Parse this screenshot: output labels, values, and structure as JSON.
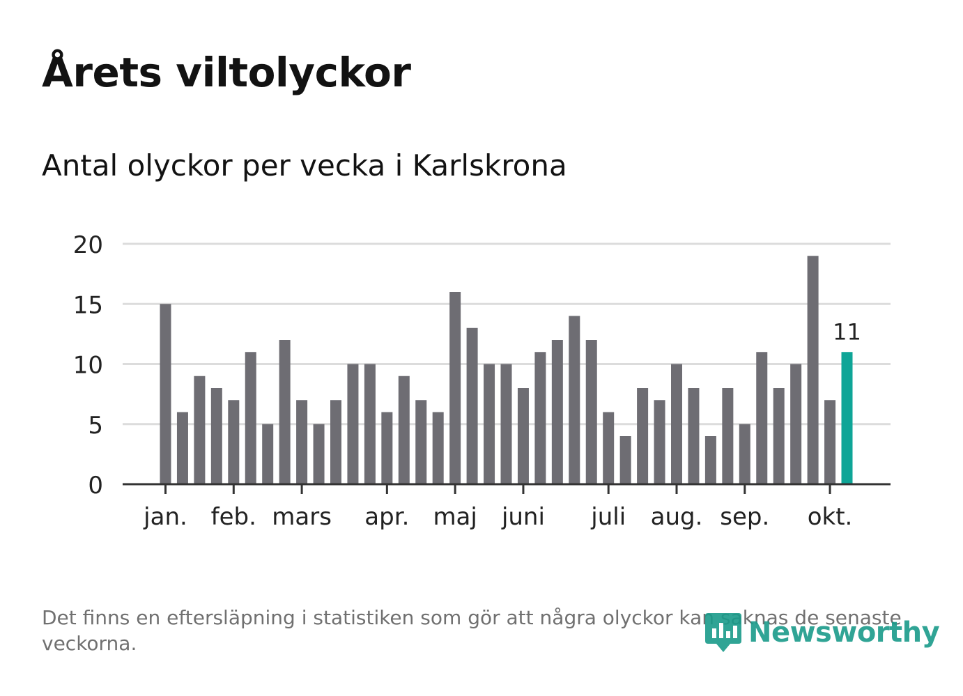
{
  "header": {
    "title": "Årets viltolyckor",
    "subtitle": "Antal olyckor per vecka i Karlskrona"
  },
  "footer": {
    "note": "Det finns en eftersläpning i statistiken som gör att några olyckor kan saknas de senaste veckorna.",
    "brand": "Newsworthy",
    "brand_icon": "bar-chart-pin-icon"
  },
  "colors": {
    "bar": "#6e6d73",
    "highlight": "#0ea597",
    "grid": "#dcdcdc",
    "axis": "#333333",
    "text": "#222222"
  },
  "chart_data": {
    "type": "bar",
    "title": "Antal olyckor per vecka i Karlskrona",
    "xlabel": "",
    "ylabel": "",
    "ylim": [
      0,
      20
    ],
    "yticks": [
      0,
      5,
      10,
      15,
      20
    ],
    "x": [
      1,
      2,
      3,
      4,
      5,
      6,
      7,
      8,
      9,
      10,
      11,
      12,
      13,
      14,
      15,
      16,
      17,
      18,
      19,
      20,
      21,
      22,
      23,
      24,
      25,
      26,
      27,
      28,
      29,
      30,
      31,
      32,
      33,
      34,
      35,
      36,
      37,
      38,
      39,
      40,
      41
    ],
    "values": [
      15,
      6,
      9,
      8,
      7,
      11,
      5,
      12,
      7,
      5,
      7,
      10,
      10,
      6,
      9,
      7,
      6,
      16,
      13,
      10,
      10,
      8,
      11,
      12,
      14,
      12,
      6,
      4,
      8,
      7,
      10,
      8,
      4,
      8,
      5,
      11,
      8,
      10,
      19,
      7,
      11
    ],
    "month_ticks": [
      {
        "label": "jan.",
        "week": 1
      },
      {
        "label": "feb.",
        "week": 5
      },
      {
        "label": "mars",
        "week": 9
      },
      {
        "label": "apr.",
        "week": 14
      },
      {
        "label": "maj",
        "week": 18
      },
      {
        "label": "juni",
        "week": 22
      },
      {
        "label": "juli",
        "week": 27
      },
      {
        "label": "aug.",
        "week": 31
      },
      {
        "label": "sep.",
        "week": 35
      },
      {
        "label": "okt.",
        "week": 40
      }
    ],
    "highlight_index": 40,
    "highlight_label": "11",
    "grid": true
  }
}
